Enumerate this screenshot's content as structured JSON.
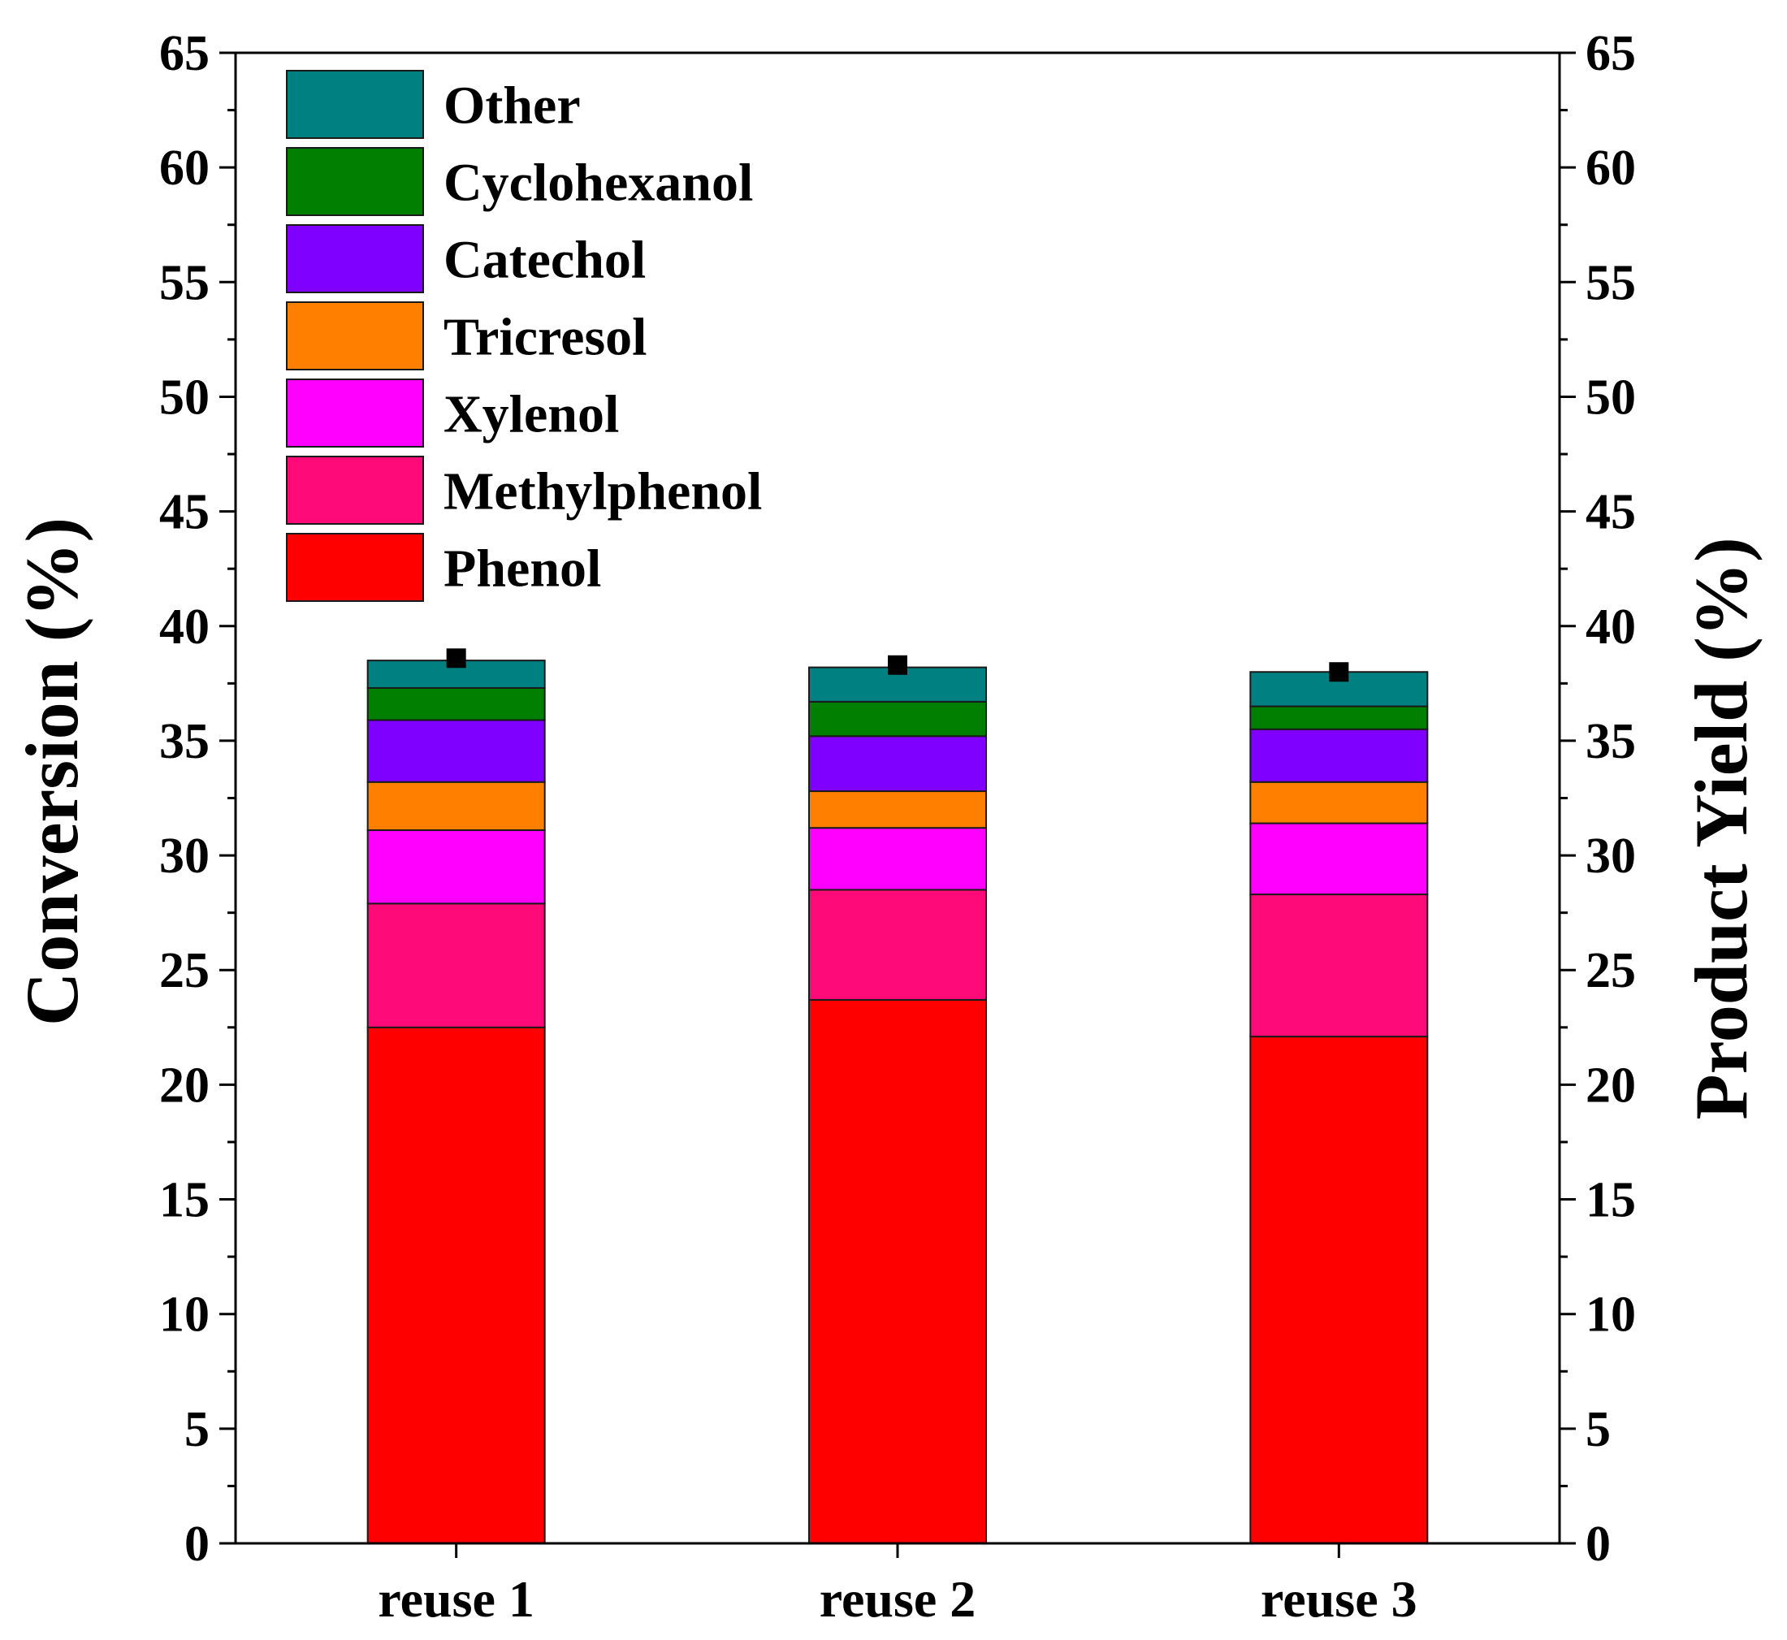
{
  "chart_data": {
    "type": "bar",
    "stacked": true,
    "categories": [
      "reuse 1",
      "reuse 2",
      "reuse 3"
    ],
    "series": [
      {
        "name": "Phenol",
        "color": "#ff0000",
        "values": [
          22.5,
          23.7,
          22.1
        ]
      },
      {
        "name": "Methylphenol",
        "color": "#ff0a78",
        "values": [
          5.4,
          4.8,
          6.2
        ]
      },
      {
        "name": "Xylenol",
        "color": "#ff00ff",
        "values": [
          3.2,
          2.7,
          3.1
        ]
      },
      {
        "name": "Tricresol",
        "color": "#ff8000",
        "values": [
          2.1,
          1.6,
          1.8
        ]
      },
      {
        "name": "Catechol",
        "color": "#7f00ff",
        "values": [
          2.7,
          2.4,
          2.3
        ]
      },
      {
        "name": "Cyclohexanol",
        "color": "#007f00",
        "values": [
          1.4,
          1.5,
          1.0
        ]
      },
      {
        "name": "Other",
        "color": "#008080",
        "values": [
          1.2,
          1.5,
          1.5
        ]
      }
    ],
    "conversion_points": [
      38.6,
      38.3,
      38.0
    ],
    "ylabel_left": "Conversion (%)",
    "ylabel_right": "Product Yield (%)",
    "xlabel": "",
    "ylim": [
      0,
      65
    ],
    "yticks": [
      "0",
      "5",
      "10",
      "15",
      "20",
      "25",
      "30",
      "35",
      "40",
      "45",
      "50",
      "55",
      "60",
      "65"
    ],
    "legend_order": [
      "Other",
      "Cyclohexanol",
      "Catechol",
      "Tricresol",
      "Xylenol",
      "Methylphenol",
      "Phenol"
    ],
    "legend_position": "top-left",
    "grid": false
  }
}
